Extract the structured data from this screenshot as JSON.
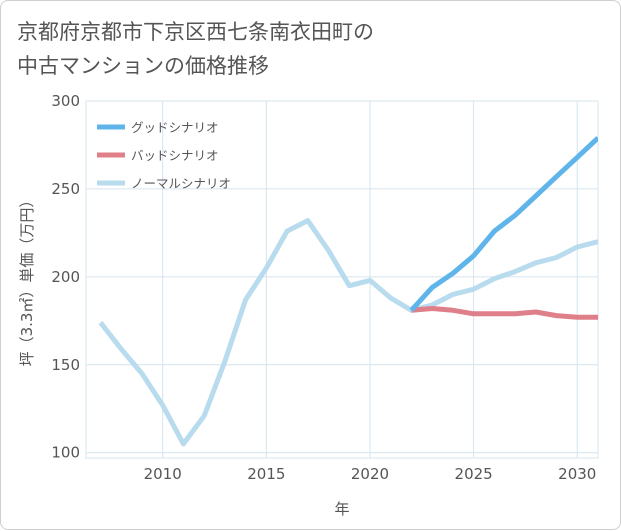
{
  "title_lines": [
    "京都府京都市下京区西七条南衣田町の",
    "中古マンションの価格推移"
  ],
  "chart_data": {
    "type": "line",
    "xlabel": "年",
    "ylabel": "坪（3.3㎡）単価（万円）",
    "xlim": [
      2006.3,
      2031
    ],
    "ylim": [
      97,
      300
    ],
    "xticks": [
      2010,
      2015,
      2020,
      2025,
      2030
    ],
    "yticks": [
      100,
      150,
      200,
      250,
      300
    ],
    "grid": true,
    "legend_position": "top-left",
    "series": [
      {
        "name": "グッドシナリオ",
        "color": "#5fb4ea",
        "x": [
          2022,
          2023,
          2024,
          2025,
          2026,
          2027,
          2028,
          2029,
          2030,
          2031
        ],
        "y": [
          181,
          194,
          202,
          212,
          226,
          235,
          246,
          257,
          268,
          279
        ]
      },
      {
        "name": "バッドシナリオ",
        "color": "#df7f8a",
        "x": [
          2022,
          2023,
          2024,
          2025,
          2026,
          2027,
          2028,
          2029,
          2030,
          2031
        ],
        "y": [
          181,
          182,
          181,
          179,
          179,
          179,
          180,
          178,
          177,
          177
        ]
      },
      {
        "name": "ノーマルシナリオ",
        "color": "#b8dbee",
        "x": [
          2007,
          2008,
          2009,
          2010,
          2011,
          2012,
          2013,
          2014,
          2015,
          2016,
          2017,
          2018,
          2019,
          2020,
          2021,
          2022,
          2023,
          2024,
          2025,
          2026,
          2027,
          2028,
          2029,
          2030,
          2031
        ],
        "y": [
          174,
          159,
          145,
          127,
          105,
          121,
          152,
          187,
          205,
          226,
          232,
          215,
          195,
          198,
          188,
          181,
          184,
          190,
          193,
          199,
          203,
          208,
          211,
          217,
          220
        ]
      }
    ]
  }
}
